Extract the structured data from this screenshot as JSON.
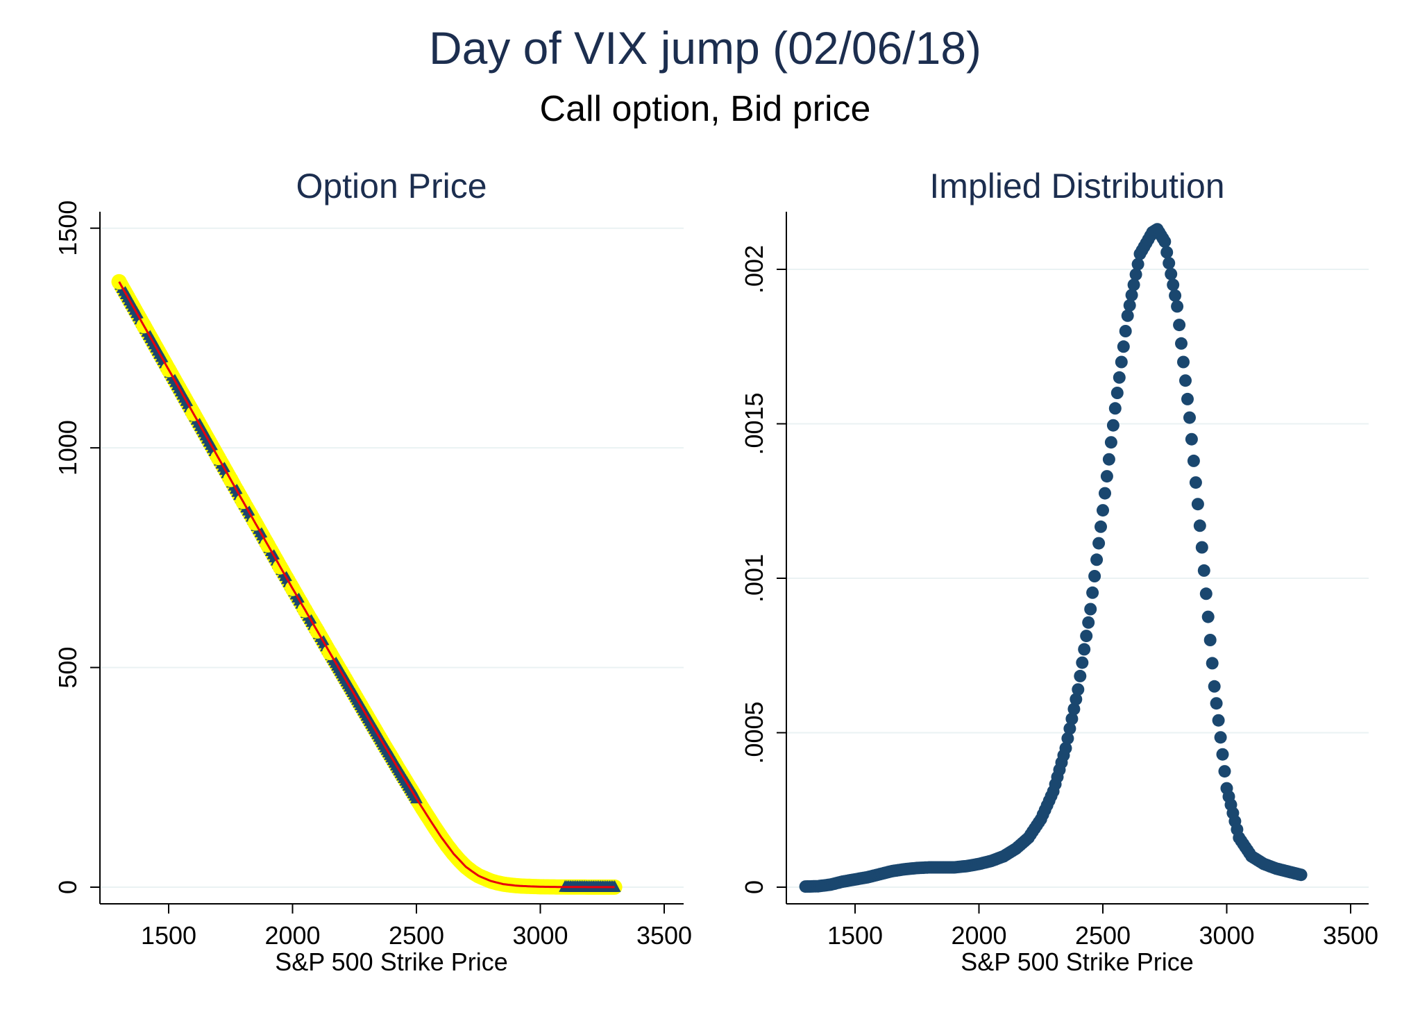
{
  "figure": {
    "title": "Day of VIX jump (02/06/18)",
    "subtitle": "Call option, Bid price"
  },
  "colors": {
    "navy": "#1a476f",
    "title": "#1c2e4f",
    "yellow": "#ffff00",
    "red": "#e8000b",
    "grid": "#eaf2f3",
    "axis": "#000000"
  },
  "chart_data": [
    {
      "type": "scatter",
      "title": "Option Price",
      "xlabel": "S&P 500 Strike Price",
      "ylabel": "",
      "xlim": [
        1250,
        3550
      ],
      "ylim": [
        -30,
        1550
      ],
      "xticks": [
        1500,
        2000,
        2500,
        3000,
        3500
      ],
      "xtick_labels": [
        "1500",
        "2000",
        "2500",
        "3000",
        "3500"
      ],
      "yticks": [
        0,
        500,
        1000,
        1500
      ],
      "ytick_labels": [
        "0",
        "500",
        "1000",
        "1500"
      ],
      "grid": true,
      "legend": "none",
      "series": [
        {
          "role": "observed bid prices (yellow circles)",
          "color": "#ffff00",
          "x": [
            1300,
            1400,
            1500,
            1600,
            1700,
            1750,
            1800,
            1850,
            1900,
            1950,
            2000,
            2050,
            2100,
            2150,
            2175,
            2200,
            2225,
            2250,
            2275,
            2300,
            2325,
            2350,
            2375,
            2400,
            2425,
            2450,
            2475,
            2500,
            2525,
            2550,
            2575,
            2600,
            2625,
            2650,
            2675,
            2700,
            2725,
            2750,
            2775,
            2800,
            2825,
            2850,
            2875,
            2900,
            2925,
            2950,
            2975,
            3000,
            3025,
            3050,
            3075,
            3100,
            3150,
            3200,
            3250,
            3300
          ],
          "y": [
            1378,
            1278,
            1178,
            1078,
            978,
            928,
            878,
            829,
            779,
            729,
            680,
            631,
            583,
            534,
            510,
            486,
            462,
            438,
            414,
            390,
            366,
            342,
            318,
            295,
            271,
            248,
            225,
            202,
            179,
            157,
            135,
            114,
            94,
            76,
            60,
            46,
            35,
            26,
            20,
            14,
            10,
            7,
            5,
            3.5,
            2.5,
            2,
            1.5,
            1,
            0.8,
            0.6,
            0.5,
            0.4,
            0.3,
            0.2,
            0.1,
            0.1
          ]
        },
        {
          "role": "fitted prices (navy triangles)",
          "color": "#1a476f",
          "x": [
            1300,
            1350,
            1400,
            1450,
            1500,
            1550,
            1600,
            1650,
            1700,
            1750,
            1800,
            1850,
            1900,
            1950,
            2000,
            2050,
            2100,
            2150,
            2175,
            2200,
            2225,
            2250,
            2275,
            2300,
            2325,
            2350,
            2375,
            2400,
            2425,
            2450,
            2475,
            2500,
            3100,
            3150,
            3200,
            3250,
            3300
          ],
          "y": [
            1378,
            1328,
            1278,
            1228,
            1178,
            1128,
            1078,
            1028,
            978,
            928,
            878,
            829,
            779,
            729,
            680,
            631,
            583,
            534,
            510,
            486,
            462,
            438,
            414,
            390,
            366,
            342,
            318,
            295,
            271,
            248,
            225,
            202,
            0.4,
            0.3,
            0.2,
            0.1,
            0.1
          ]
        },
        {
          "role": "smoothed fit (red line)",
          "color": "#e8000b",
          "x": [
            1300,
            1400,
            1500,
            1600,
            1700,
            1800,
            1900,
            2000,
            2100,
            2150,
            2200,
            2250,
            2300,
            2350,
            2400,
            2450,
            2500,
            2550,
            2600,
            2650,
            2700,
            2750,
            2800,
            2850,
            2900,
            2950,
            3000,
            3050,
            3100,
            3200,
            3300
          ],
          "y": [
            1378,
            1278,
            1178,
            1078,
            978,
            878,
            779,
            680,
            583,
            534,
            486,
            438,
            390,
            342,
            295,
            248,
            202,
            157,
            114,
            76,
            46,
            26,
            14,
            7,
            3.5,
            2,
            1,
            0.6,
            0.4,
            0.2,
            0.1
          ]
        }
      ]
    },
    {
      "type": "scatter",
      "title": "Implied Distribution",
      "xlabel": "S&P 500 Strike Price",
      "ylabel": "",
      "xlim": [
        1250,
        3550
      ],
      "ylim": [
        -5e-05,
        0.00218
      ],
      "xticks": [
        1500,
        2000,
        2500,
        3000,
        3500
      ],
      "xtick_labels": [
        "1500",
        "2000",
        "2500",
        "3000",
        "3500"
      ],
      "yticks": [
        0,
        0.0005,
        0.001,
        0.0015,
        0.002
      ],
      "ytick_labels": [
        "0",
        ".0005",
        ".001",
        ".0015",
        ".002"
      ],
      "grid": true,
      "legend": "none",
      "series": [
        {
          "role": "implied density (navy circles)",
          "color": "#1a476f",
          "x": [
            1300,
            1350,
            1400,
            1450,
            1500,
            1550,
            1600,
            1650,
            1700,
            1750,
            1800,
            1850,
            1900,
            1950,
            2000,
            2050,
            2100,
            2150,
            2200,
            2250,
            2300,
            2350,
            2400,
            2450,
            2500,
            2550,
            2600,
            2650,
            2700,
            2720,
            2750,
            2800,
            2850,
            2900,
            2950,
            3000,
            3050,
            3100,
            3150,
            3200,
            3250,
            3300
          ],
          "y": [
            2e-06,
            3e-06,
            8e-06,
            1.8e-05,
            2.5e-05,
            3.2e-05,
            4.2e-05,
            5.2e-05,
            5.8e-05,
            6.2e-05,
            6.4e-05,
            6.4e-05,
            6.4e-05,
            6.8e-05,
            7.5e-05,
            8.5e-05,
            0.0001,
            0.000125,
            0.00016,
            0.00022,
            0.00031,
            0.00045,
            0.00064,
            0.0009,
            0.00122,
            0.00155,
            0.00185,
            0.00205,
            0.00212,
            0.00213,
            0.00209,
            0.00188,
            0.00152,
            0.0011,
            0.00065,
            0.00032,
            0.00016,
            0.0001,
            7.5e-05,
            6e-05,
            5e-05,
            4e-05
          ]
        }
      ]
    }
  ]
}
